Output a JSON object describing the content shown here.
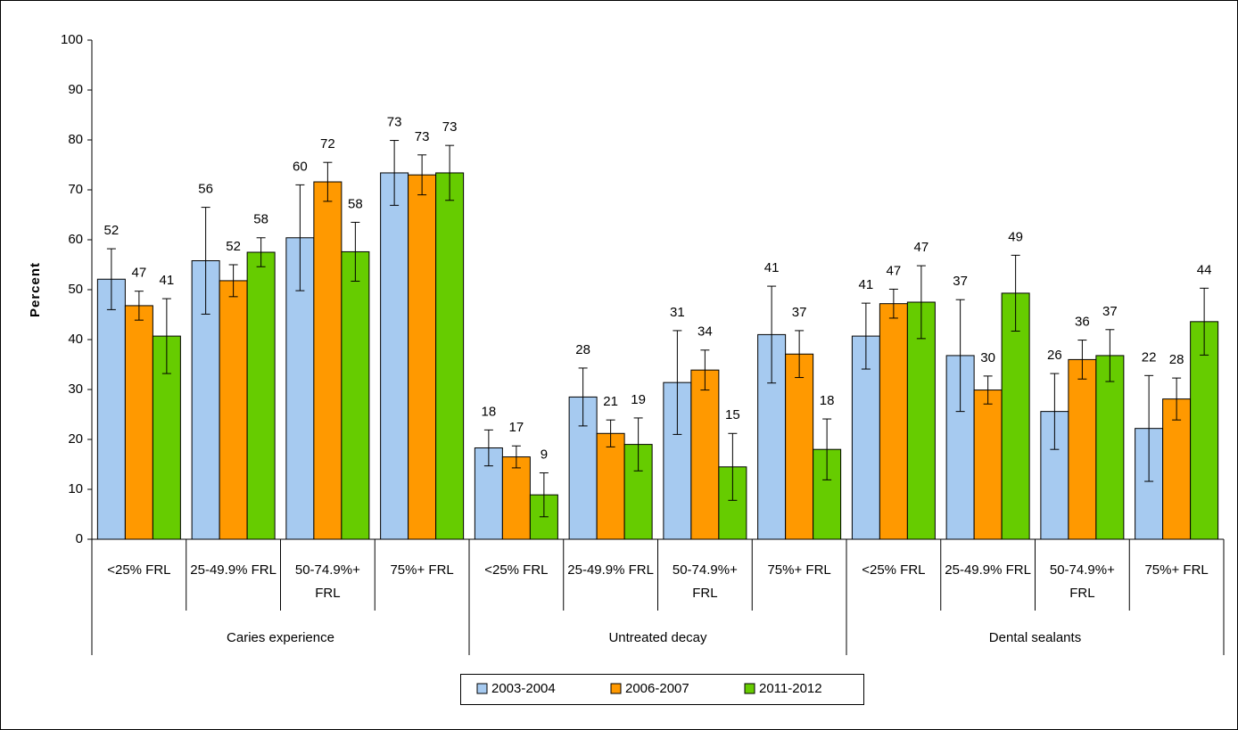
{
  "chart_data": {
    "type": "bar",
    "y_label": "Percent",
    "categories": [
      "<25% FRL",
      "25-49.9% FRL",
      "50-74.9%+ FRL",
      "75%+ FRL",
      "<25% FRL",
      "25-49.9% FRL",
      "50-74.9%+ FRL",
      "75%+ FRL",
      "<25% FRL",
      "25-49.9% FRL",
      "50-74.9%+ FRL",
      "75%+ FRL"
    ],
    "groups": [
      "Caries experience",
      "Untreated decay",
      "Dental sealants"
    ],
    "series": [
      {
        "name": "2003-2004",
        "color": "#a6caf0",
        "values": [
          52.1,
          55.8,
          60.4,
          73.4,
          18.3,
          28.5,
          31.4,
          41.0,
          40.7,
          36.8,
          25.6,
          22.2
        ],
        "value_labels": [
          "52",
          "56",
          "60",
          "73",
          "18",
          "28",
          "31",
          "41",
          "41",
          "37",
          "26",
          "22"
        ],
        "errors": [
          6.1,
          10.7,
          10.6,
          6.5,
          3.6,
          5.8,
          10.4,
          9.7,
          6.6,
          11.2,
          7.6,
          10.6
        ]
      },
      {
        "name": "2006-2007",
        "color": "#ff9900",
        "values": [
          46.8,
          51.8,
          71.6,
          73.0,
          16.5,
          21.2,
          33.9,
          37.1,
          47.2,
          29.9,
          36.0,
          28.1
        ],
        "value_labels": [
          "47",
          "52",
          "72",
          "73",
          "17",
          "21",
          "34",
          "37",
          "47",
          "30",
          "36",
          "28"
        ],
        "errors": [
          2.9,
          3.2,
          3.9,
          4.0,
          2.2,
          2.7,
          4.0,
          4.7,
          2.9,
          2.8,
          3.9,
          4.2
        ]
      },
      {
        "name": "2011-2012",
        "color": "#66cc00",
        "values": [
          40.7,
          57.5,
          57.6,
          73.4,
          8.9,
          19.0,
          14.5,
          18.0,
          47.5,
          49.3,
          36.8,
          43.6
        ],
        "value_labels": [
          "41",
          "58",
          "58",
          "73",
          "9",
          "19",
          "15",
          "18",
          "47",
          "49",
          "37",
          "44"
        ],
        "errors": [
          7.5,
          2.9,
          5.9,
          5.5,
          4.4,
          5.3,
          6.7,
          6.1,
          7.3,
          7.6,
          5.2,
          6.7
        ]
      }
    ],
    "ylim": [
      0,
      100
    ],
    "yticks": [
      0,
      10,
      20,
      30,
      40,
      50,
      60,
      70,
      80,
      90,
      100
    ]
  }
}
